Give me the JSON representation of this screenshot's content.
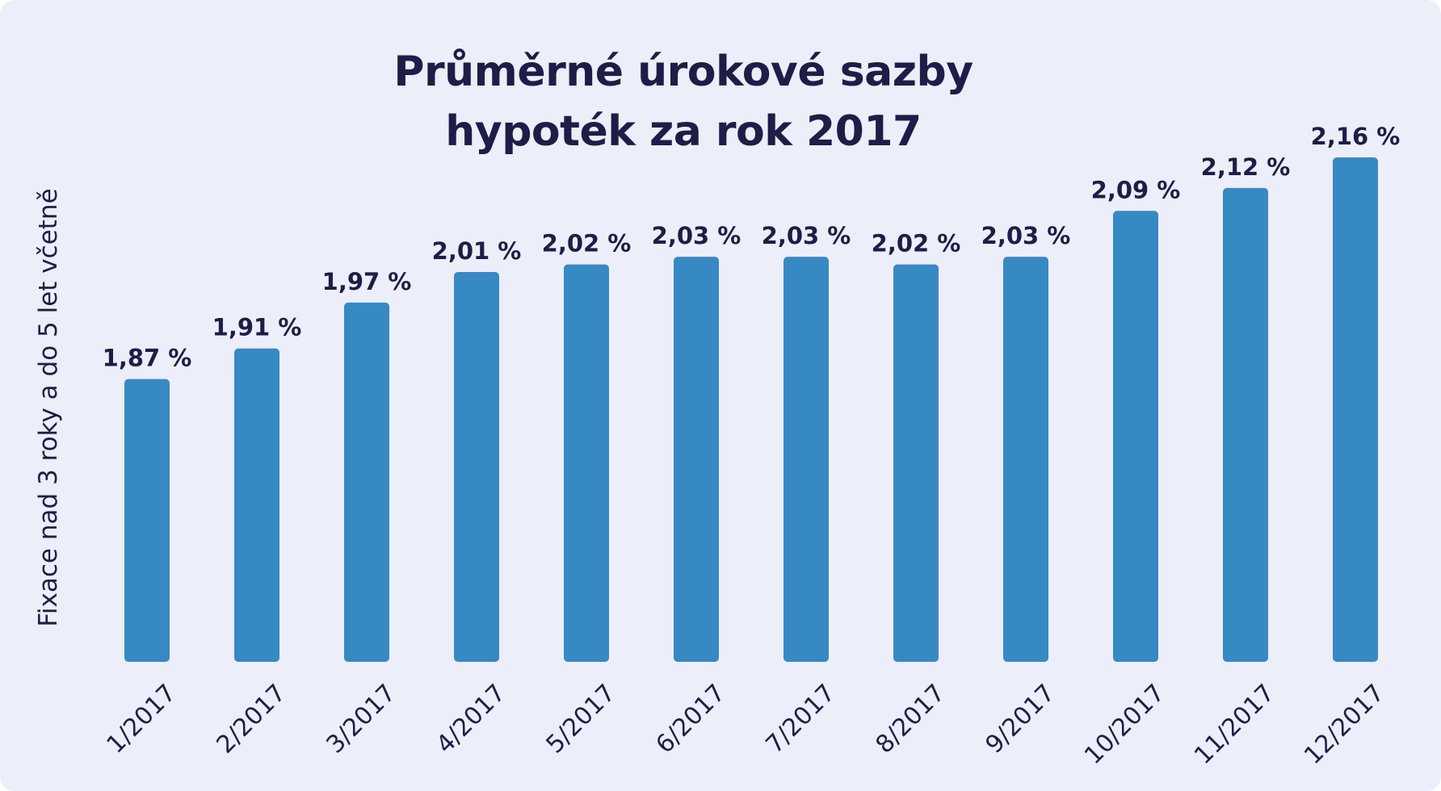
{
  "chart_data": {
    "type": "bar",
    "title_lines": [
      "Průměrné úrokové sazby",
      "hypoték za rok 2017"
    ],
    "ylabel": "Fixace nad 3 roky a do 5 let včetně",
    "xlabel": "",
    "categories": [
      "1/2017",
      "2/2017",
      "3/2017",
      "4/2017",
      "5/2017",
      "6/2017",
      "7/2017",
      "8/2017",
      "9/2017",
      "10/2017",
      "11/2017",
      "12/2017"
    ],
    "values": [
      1.87,
      1.91,
      1.97,
      2.01,
      2.02,
      2.03,
      2.03,
      2.02,
      2.03,
      2.09,
      2.12,
      2.16
    ],
    "value_labels": [
      "1,87 %",
      "1,91 %",
      "1,97 %",
      "2,01 %",
      "2,02 %",
      "2,03 %",
      "2,03 %",
      "2,02 %",
      "2,03 %",
      "2,09 %",
      "2,12 %",
      "2,16 %"
    ],
    "ylim": [
      1.5,
      2.2
    ],
    "grid": false,
    "bar_color": "#3789c3",
    "text_color": "#1f1d47",
    "background_color": "#eceefa"
  }
}
